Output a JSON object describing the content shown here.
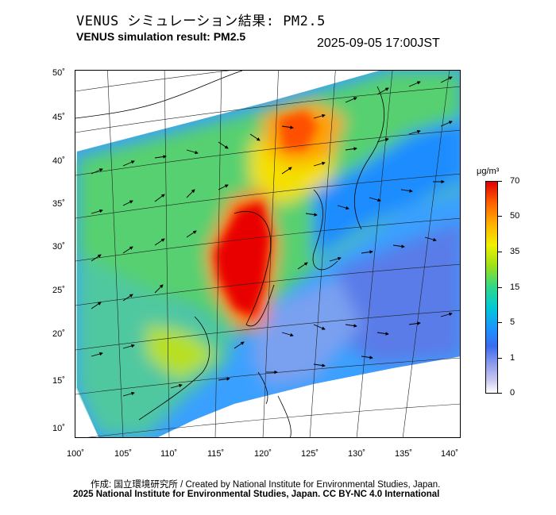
{
  "header": {
    "title_jp": "VENUS シミュレーション結果: PM2.5",
    "title_en": "VENUS simulation result: PM2.5",
    "timestamp": "2025-09-05 17:00JST"
  },
  "map": {
    "lon_labels": [
      "100˚",
      "105˚",
      "110˚",
      "115˚",
      "120˚",
      "125˚",
      "130˚",
      "135˚",
      "140˚"
    ],
    "lat_labels": [
      "50˚",
      "45˚",
      "40˚",
      "35˚",
      "30˚",
      "25˚",
      "20˚",
      "15˚",
      "10˚"
    ],
    "colors": {
      "low": "#ffffff",
      "mid": "#2fd88a",
      "high": "#e00000",
      "frame": "#000000"
    }
  },
  "colorbar": {
    "unit": "μg/m³",
    "labels": [
      "70",
      "50",
      "35",
      "15",
      "5",
      "1",
      "0"
    ]
  },
  "footer": {
    "credit_line1": "作成: 国立環境研究所 / Created by National Institute for Environmental Studies, Japan.",
    "credit_line2": "2025 National Institute for Environmental Studies, Japan. CC BY-NC 4.0 International"
  }
}
